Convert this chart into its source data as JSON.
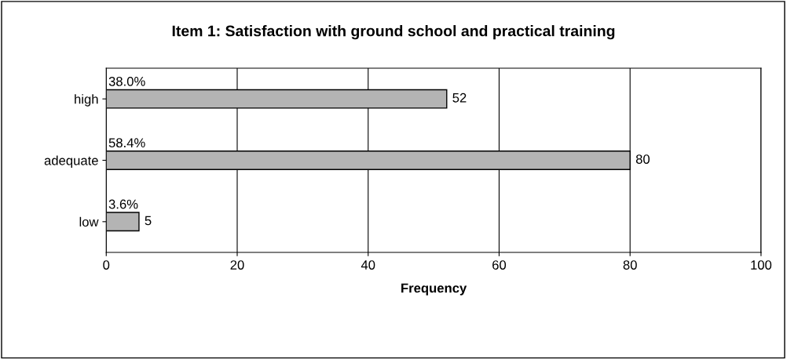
{
  "chart_data": {
    "type": "bar",
    "orientation": "horizontal",
    "title": "Item 1: Satisfaction with ground school and practical training",
    "xlabel": "Frequency",
    "categories": [
      "high",
      "adequate",
      "low"
    ],
    "values": [
      52,
      80,
      5
    ],
    "color": "#b4b4b4",
    "data_labels": true,
    "annotations": [
      "38.0%",
      "58.4%",
      "3.6%"
    ],
    "xlim": [
      0,
      100
    ],
    "xticks": [
      0,
      20,
      40,
      60,
      80,
      100
    ],
    "grid": "x",
    "legend": false
  }
}
